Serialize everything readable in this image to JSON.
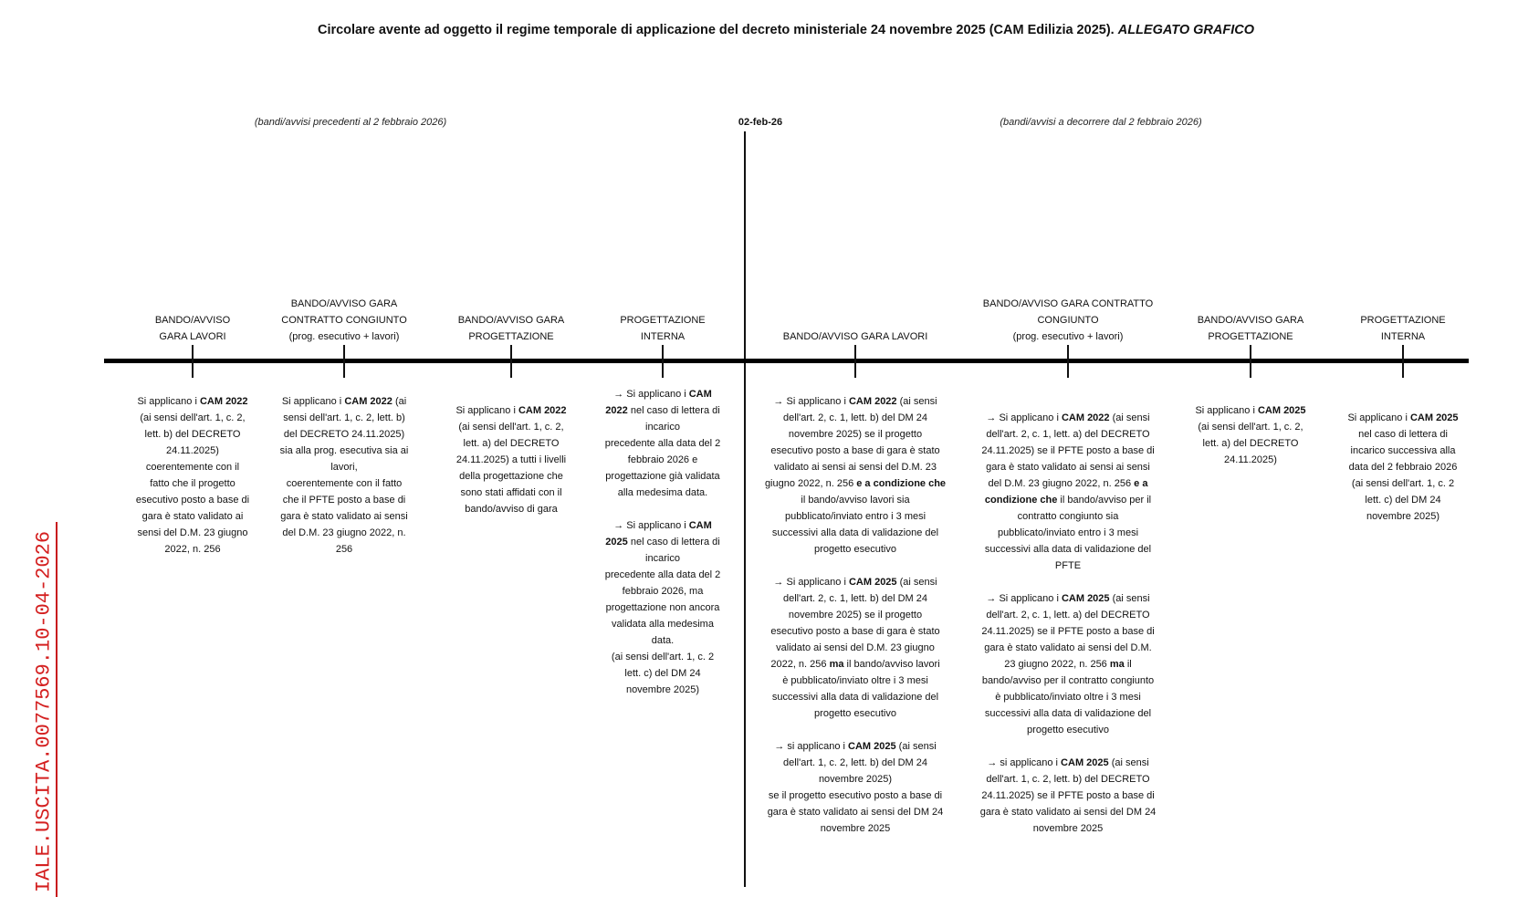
{
  "title": {
    "main": "Circolare avente ad oggetto il regime temporale di applicazione del decreto ministeriale 24 novembre 2025 (CAM Edilizia 2025).",
    "italic": "ALLEGATO GRAFICO"
  },
  "timeline": {
    "left_label": "(bandi/avvisi precedenti al 2 febbraio 2026)",
    "date_label": "02-feb-26",
    "right_label": "(bandi/avvisi a decorrere dal 2 febbraio 2026)"
  },
  "watermark": {
    "text": "IALE.USCITA.0077569.10-04-2026",
    "color": "#d42020"
  },
  "columns": [
    {
      "header": "BANDO/AVVISO\nGARA LAVORI",
      "paragraphs": [
        [
          [
            "Si applicano i ",
            "CAM 2022"
          ],
          [
            "(ai sensi dell'art. 1, c. 2,"
          ],
          [
            "lett. b) del  DECRETO"
          ],
          [
            "24.11.2025)"
          ],
          [
            "coerentemente con il"
          ],
          [
            "fatto che il progetto"
          ],
          [
            "esecutivo posto a base di"
          ],
          [
            "gara è stato validato ai"
          ],
          [
            "sensi del D.M. 23 giugno"
          ],
          [
            "2022, n. 256"
          ]
        ]
      ]
    },
    {
      "header": "BANDO/AVVISO GARA\nCONTRATTO CONGIUNTO\n(prog. esecutivo + lavori)",
      "paragraphs": [
        [
          [
            "Si applicano i ",
            "CAM 2022",
            " (ai"
          ],
          [
            "sensi dell'art. 1, c. 2, lett. b)"
          ],
          [
            "del  DECRETO  24.11.2025)"
          ],
          [
            "sia alla prog. esecutiva sia ai"
          ],
          [
            "lavori,"
          ],
          [
            "coerentemente con il fatto"
          ],
          [
            "che il PFTE posto a base di"
          ],
          [
            "gara è stato validato ai sensi"
          ],
          [
            "del D.M. 23 giugno 2022, n."
          ],
          [
            "256"
          ]
        ]
      ]
    },
    {
      "header": "BANDO/AVVISO GARA\nPROGETTAZIONE",
      "paragraphs": [
        [
          [
            "Si applicano i ",
            "CAM 2022"
          ],
          [
            "(ai sensi dell'art. 1, c. 2,"
          ],
          [
            "lett. a) del  DECRETO"
          ],
          [
            "24.11.2025) a tutti i livelli"
          ],
          [
            "della progettazione che"
          ],
          [
            "sono stati affidati con il"
          ],
          [
            "bando/avviso di gara"
          ]
        ]
      ]
    },
    {
      "header": "PROGETTAZIONE\nINTERNA",
      "paragraphs": [
        [
          [
            "→ Si applicano i ",
            "CAM"
          ],
          [
            "",
            "2022",
            " nel caso di lettera di"
          ],
          [
            "incarico"
          ],
          [
            "precedente alla data del 2"
          ],
          [
            "febbraio 2026 e"
          ],
          [
            "progettazione già validata"
          ],
          [
            "alla medesima data."
          ]
        ],
        [
          [
            "→ Si applicano i ",
            "CAM"
          ],
          [
            "",
            "2025",
            " nel caso di lettera di"
          ],
          [
            "incarico"
          ],
          [
            "precedente alla data del 2"
          ],
          [
            "febbraio 2026, ma"
          ],
          [
            "progettazione non ancora"
          ],
          [
            "validata alla medesima"
          ],
          [
            "data."
          ],
          [
            "(ai sensi dell'art. 1, c. 2"
          ],
          [
            "lett. c) del DM 24"
          ],
          [
            "novembre 2025)"
          ]
        ]
      ]
    },
    {
      "header": "BANDO/AVVISO GARA LAVORI",
      "paragraphs": [
        [
          [
            "→ Si applicano i ",
            "CAM 2022",
            " (ai sensi"
          ],
          [
            "dell'art. 2, c. 1, lett. b) del DM 24"
          ],
          [
            "novembre 2025) se il progetto"
          ],
          [
            "esecutivo posto a base di gara è stato"
          ],
          [
            "validato ai sensi ai sensi del D.M. 23"
          ],
          [
            "giugno 2022, n. 256 ",
            "e a condizione che"
          ],
          [
            "il bando/avviso lavori sia"
          ],
          [
            "pubblicato/inviato entro i 3 mesi"
          ],
          [
            "successivi alla data di validazione del"
          ],
          [
            "progetto esecutivo"
          ]
        ],
        [
          [
            "→ Si applicano i ",
            "CAM 2025",
            " (ai sensi"
          ],
          [
            "dell'art. 2, c. 1, lett. b) del DM 24"
          ],
          [
            "novembre 2025) se il progetto"
          ],
          [
            "esecutivo posto a base di gara è stato"
          ],
          [
            "validato ai sensi del D.M. 23 giugno"
          ],
          [
            "2022, n. 256 ",
            "ma",
            " il bando/avviso lavori"
          ],
          [
            "è pubblicato/inviato oltre i 3 mesi"
          ],
          [
            "successivi alla data di validazione del"
          ],
          [
            "progetto esecutivo"
          ]
        ],
        [
          [
            "→ si applicano i ",
            "CAM 2025",
            " (ai sensi"
          ],
          [
            "dell'art. 1, c. 2, lett. b) del DM 24"
          ],
          [
            "novembre 2025)"
          ],
          [
            "se il progetto esecutivo posto a base di"
          ],
          [
            "gara è stato validato ai sensi del DM 24"
          ],
          [
            "novembre 2025"
          ]
        ]
      ]
    },
    {
      "header": "BANDO/AVVISO GARA CONTRATTO\nCONGIUNTO\n(prog. esecutivo + lavori)",
      "paragraphs": [
        [
          [
            "→ Si applicano i ",
            "CAM 2022",
            " (ai sensi"
          ],
          [
            "dell'art. 2, c. 1, lett. a) del  DECRETO"
          ],
          [
            "24.11.2025)  se il PFTE posto a base di"
          ],
          [
            "gara è stato validato ai sensi ai sensi"
          ],
          [
            "del D.M. 23 giugno 2022, n. 256 ",
            "e a"
          ],
          [
            "",
            "condizione che",
            " il bando/avviso per il"
          ],
          [
            "contratto congiunto sia"
          ],
          [
            "pubblicato/inviato entro i 3 mesi"
          ],
          [
            "successivi alla data di validazione del"
          ],
          [
            "PFTE"
          ]
        ],
        [
          [
            "→ Si applicano i ",
            "CAM 2025",
            " (ai sensi"
          ],
          [
            "dell'art. 2, c. 1, lett. a) del  DECRETO"
          ],
          [
            "24.11.2025) se il PFTE posto a base di"
          ],
          [
            "gara è stato validato ai sensi del D.M."
          ],
          [
            "23 giugno 2022, n. 256 ",
            "ma",
            " il"
          ],
          [
            "bando/avviso per il contratto congiunto"
          ],
          [
            "è pubblicato/inviato oltre i 3 mesi"
          ],
          [
            "successivi alla data di validazione del"
          ],
          [
            "progetto esecutivo"
          ]
        ],
        [
          [
            "→ si applicano i ",
            "CAM 2025",
            " (ai sensi"
          ],
          [
            "dell'art. 1, c. 2, lett. b) del  DECRETO"
          ],
          [
            "24.11.2025) se il PFTE posto a base di"
          ],
          [
            "gara è stato validato ai sensi del DM 24"
          ],
          [
            "novembre 2025"
          ]
        ]
      ]
    },
    {
      "header": "BANDO/AVVISO GARA\nPROGETTAZIONE",
      "paragraphs": [
        [
          [
            "Si applicano i ",
            "CAM 2025"
          ],
          [
            "(ai sensi dell'art. 1, c. 2,"
          ],
          [
            "lett. a) del  DECRETO"
          ],
          [
            "24.11.2025)"
          ]
        ]
      ]
    },
    {
      "header": "PROGETTAZIONE\nINTERNA",
      "paragraphs": [
        [
          [
            "Si applicano i ",
            "CAM 2025"
          ],
          [
            "nel caso di lettera di"
          ],
          [
            "incarico successiva alla"
          ],
          [
            "data del 2 febbraio 2026"
          ],
          [
            "(ai sensi dell'art. 1, c. 2"
          ],
          [
            "lett. c) del DM 24"
          ],
          [
            "novembre 2025)"
          ]
        ]
      ]
    }
  ]
}
